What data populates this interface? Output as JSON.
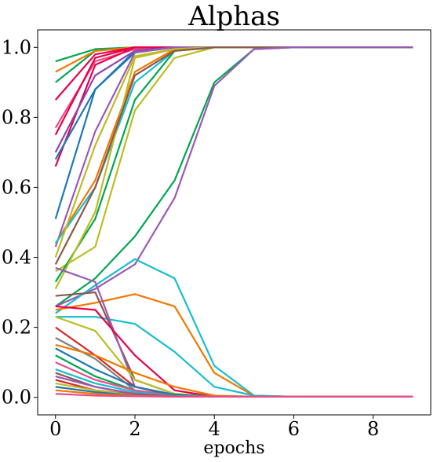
{
  "chart_data": {
    "type": "line",
    "title": "Alphas",
    "xlabel": "epochs",
    "ylabel": "",
    "xlim": [
      -0.45,
      9.45
    ],
    "ylim": [
      -0.05,
      1.05
    ],
    "xticks": [
      0,
      2,
      4,
      6,
      8
    ],
    "xtick_labels": [
      "0",
      "2",
      "4",
      "6",
      "8"
    ],
    "yticks": [
      0.0,
      0.2,
      0.4,
      0.6,
      0.8,
      1.0
    ],
    "ytick_labels": [
      "0.0",
      "0.2",
      "0.4",
      "0.6",
      "0.8",
      "1.0"
    ],
    "grid": false,
    "x": [
      0,
      1,
      2,
      3,
      4,
      5,
      6,
      7,
      8,
      9
    ],
    "series": [
      {
        "color": "#00a651",
        "values": [
          0.96,
          0.995,
          1.0,
          1.0,
          1.0,
          1.0,
          1.0,
          1.0,
          1.0,
          1.0
        ]
      },
      {
        "color": "#00a651",
        "values": [
          0.9,
          0.99,
          1.0,
          1.0,
          1.0,
          1.0,
          1.0,
          1.0,
          1.0,
          1.0
        ]
      },
      {
        "color": "#f07800",
        "values": [
          0.93,
          0.99,
          1.0,
          1.0,
          1.0,
          1.0,
          1.0,
          1.0,
          1.0,
          1.0
        ]
      },
      {
        "color": "#e8004a",
        "values": [
          0.85,
          0.98,
          1.0,
          1.0,
          1.0,
          1.0,
          1.0,
          1.0,
          1.0,
          1.0
        ]
      },
      {
        "color": "#e84d8a",
        "values": [
          0.77,
          0.96,
          0.995,
          1.0,
          1.0,
          1.0,
          1.0,
          1.0,
          1.0,
          1.0
        ]
      },
      {
        "color": "#e8004a",
        "values": [
          0.75,
          0.97,
          1.0,
          1.0,
          1.0,
          1.0,
          1.0,
          1.0,
          1.0,
          1.0
        ]
      },
      {
        "color": "#e8004a",
        "values": [
          0.66,
          0.95,
          1.0,
          1.0,
          1.0,
          1.0,
          1.0,
          1.0,
          1.0,
          1.0
        ]
      },
      {
        "color": "#1f77b4",
        "values": [
          0.68,
          0.88,
          0.99,
          1.0,
          1.0,
          1.0,
          1.0,
          1.0,
          1.0,
          1.0
        ]
      },
      {
        "color": "#8e44ad",
        "values": [
          0.7,
          0.92,
          0.99,
          1.0,
          1.0,
          1.0,
          1.0,
          1.0,
          1.0,
          1.0
        ]
      },
      {
        "color": "#1f77b4",
        "values": [
          0.51,
          0.88,
          0.985,
          1.0,
          1.0,
          1.0,
          1.0,
          1.0,
          1.0,
          1.0
        ]
      },
      {
        "color": "#9b59b6",
        "values": [
          0.43,
          0.76,
          0.985,
          1.0,
          1.0,
          1.0,
          1.0,
          1.0,
          1.0,
          1.0
        ]
      },
      {
        "color": "#f07800",
        "values": [
          0.44,
          0.62,
          0.93,
          0.995,
          1.0,
          1.0,
          1.0,
          1.0,
          1.0,
          1.0
        ]
      },
      {
        "color": "#17becf",
        "values": [
          0.44,
          0.6,
          0.9,
          0.99,
          1.0,
          1.0,
          1.0,
          1.0,
          1.0,
          1.0
        ]
      },
      {
        "color": "#bcbd22",
        "values": [
          0.4,
          0.72,
          0.975,
          0.995,
          1.0,
          1.0,
          1.0,
          1.0,
          1.0,
          1.0
        ]
      },
      {
        "color": "#bcbd22",
        "values": [
          0.36,
          0.43,
          0.82,
          0.97,
          1.0,
          1.0,
          1.0,
          1.0,
          1.0,
          1.0
        ]
      },
      {
        "color": "#00a651",
        "values": [
          0.33,
          0.51,
          0.85,
          0.99,
          1.0,
          1.0,
          1.0,
          1.0,
          1.0,
          1.0
        ]
      },
      {
        "color": "#bcbd22",
        "values": [
          0.31,
          0.53,
          0.97,
          0.995,
          1.0,
          1.0,
          1.0,
          1.0,
          1.0,
          1.0
        ]
      },
      {
        "color": "#8c564b",
        "values": [
          0.38,
          0.6,
          0.92,
          0.99,
          1.0,
          1.0,
          1.0,
          1.0,
          1.0,
          1.0
        ]
      },
      {
        "color": "#00a651",
        "values": [
          0.26,
          0.34,
          0.46,
          0.62,
          0.9,
          0.995,
          1.0,
          1.0,
          1.0,
          1.0
        ]
      },
      {
        "color": "#9b59b6",
        "values": [
          0.26,
          0.31,
          0.38,
          0.57,
          0.89,
          0.995,
          1.0,
          1.0,
          1.0,
          1.0
        ]
      },
      {
        "color": "#17becf",
        "values": [
          0.24,
          0.32,
          0.395,
          0.34,
          0.09,
          0.005,
          0.002,
          0.002,
          0.002,
          0.002
        ]
      },
      {
        "color": "#f07800",
        "values": [
          0.25,
          0.27,
          0.295,
          0.26,
          0.07,
          0.004,
          0.002,
          0.002,
          0.002,
          0.002
        ]
      },
      {
        "color": "#17becf",
        "values": [
          0.23,
          0.23,
          0.21,
          0.13,
          0.03,
          0.005,
          0.002,
          0.002,
          0.002,
          0.002
        ]
      },
      {
        "color": "#8c564b",
        "values": [
          0.29,
          0.3,
          0.05,
          0.01,
          0.002,
          0.002,
          0.002,
          0.002,
          0.002,
          0.002
        ]
      },
      {
        "color": "#9b59b6",
        "values": [
          0.37,
          0.33,
          0.03,
          0.005,
          0.002,
          0.002,
          0.002,
          0.002,
          0.002,
          0.002
        ]
      },
      {
        "color": "#e8004a",
        "values": [
          0.26,
          0.25,
          0.12,
          0.02,
          0.002,
          0.002,
          0.002,
          0.002,
          0.002,
          0.002
        ]
      },
      {
        "color": "#d62728",
        "values": [
          0.2,
          0.12,
          0.03,
          0.005,
          0.002,
          0.002,
          0.002,
          0.002,
          0.002,
          0.002
        ]
      },
      {
        "color": "#bcbd22",
        "values": [
          0.23,
          0.19,
          0.05,
          0.01,
          0.002,
          0.002,
          0.002,
          0.002,
          0.002,
          0.002
        ]
      },
      {
        "color": "#7f7f7f",
        "values": [
          0.17,
          0.11,
          0.02,
          0.005,
          0.002,
          0.002,
          0.002,
          0.002,
          0.002,
          0.002
        ]
      },
      {
        "color": "#f07800",
        "values": [
          0.15,
          0.12,
          0.07,
          0.03,
          0.005,
          0.002,
          0.002,
          0.002,
          0.002,
          0.002
        ]
      },
      {
        "color": "#1f77b4",
        "values": [
          0.14,
          0.08,
          0.03,
          0.008,
          0.002,
          0.002,
          0.002,
          0.002,
          0.002,
          0.002
        ]
      },
      {
        "color": "#00a651",
        "values": [
          0.12,
          0.06,
          0.02,
          0.005,
          0.002,
          0.002,
          0.002,
          0.002,
          0.002,
          0.002
        ]
      },
      {
        "color": "#e84d8a",
        "values": [
          0.1,
          0.05,
          0.02,
          0.004,
          0.002,
          0.002,
          0.002,
          0.002,
          0.002,
          0.002
        ]
      },
      {
        "color": "#17becf",
        "values": [
          0.08,
          0.04,
          0.015,
          0.004,
          0.002,
          0.002,
          0.002,
          0.002,
          0.002,
          0.002
        ]
      },
      {
        "color": "#8c564b",
        "values": [
          0.07,
          0.03,
          0.01,
          0.003,
          0.002,
          0.002,
          0.002,
          0.002,
          0.002,
          0.002
        ]
      },
      {
        "color": "#9b59b6",
        "values": [
          0.06,
          0.03,
          0.01,
          0.003,
          0.002,
          0.002,
          0.002,
          0.002,
          0.002,
          0.002
        ]
      },
      {
        "color": "#d62728",
        "values": [
          0.05,
          0.02,
          0.008,
          0.002,
          0.002,
          0.002,
          0.002,
          0.002,
          0.002,
          0.002
        ]
      },
      {
        "color": "#bcbd22",
        "values": [
          0.04,
          0.02,
          0.006,
          0.002,
          0.002,
          0.002,
          0.002,
          0.002,
          0.002,
          0.002
        ]
      },
      {
        "color": "#1f77b4",
        "values": [
          0.03,
          0.015,
          0.005,
          0.002,
          0.002,
          0.002,
          0.002,
          0.002,
          0.002,
          0.002
        ]
      },
      {
        "color": "#f07800",
        "values": [
          0.02,
          0.01,
          0.004,
          0.002,
          0.002,
          0.002,
          0.002,
          0.002,
          0.002,
          0.002
        ]
      },
      {
        "color": "#e84d8a",
        "values": [
          0.01,
          0.005,
          0.003,
          0.002,
          0.002,
          0.002,
          0.002,
          0.002,
          0.002,
          0.002
        ]
      }
    ]
  }
}
